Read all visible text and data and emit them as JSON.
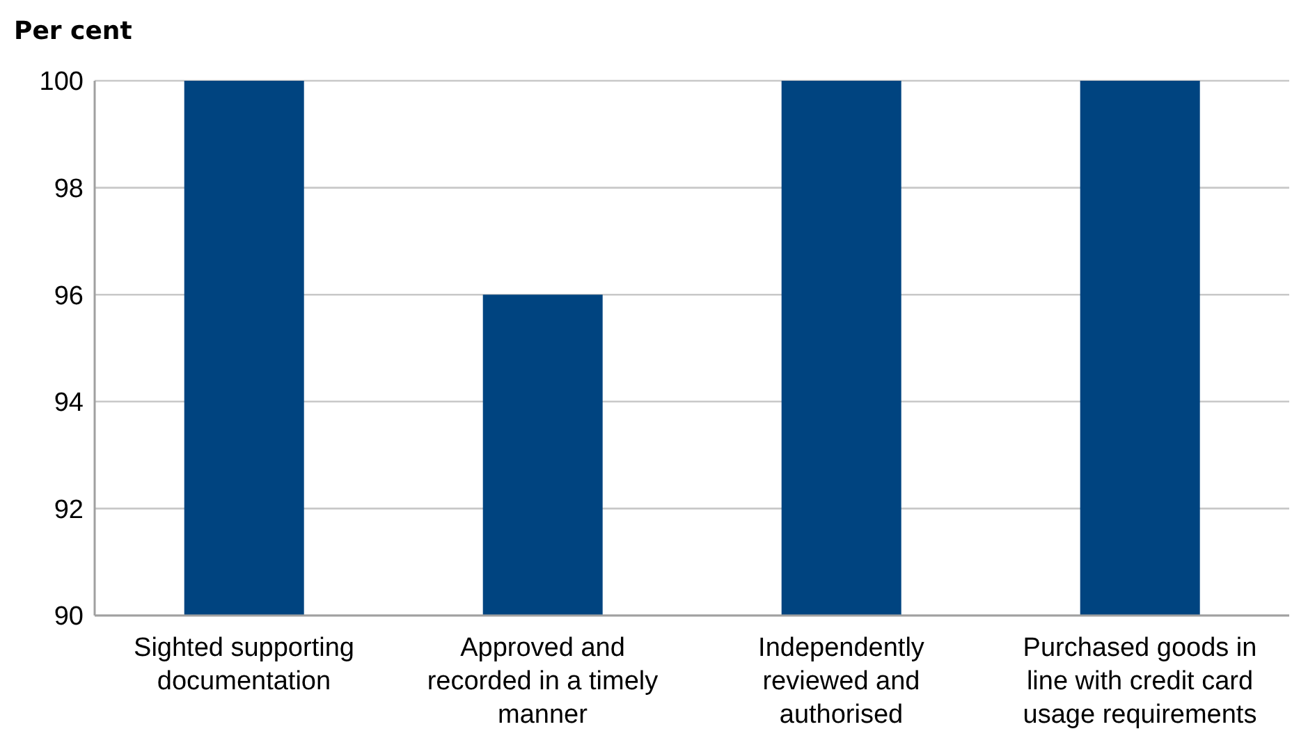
{
  "chart_data": {
    "type": "bar",
    "ylabel": "Per cent",
    "categories": [
      "Sighted supporting documentation",
      "Approved and recorded in a timely manner",
      "Independently reviewed and authorised",
      "Purchased goods in line with credit card usage requirements"
    ],
    "values": [
      100,
      96,
      100,
      100
    ],
    "color": "#004480",
    "ylim": [
      90,
      100
    ],
    "yticks": [
      90,
      92,
      94,
      96,
      98,
      100
    ],
    "grid": "y"
  }
}
